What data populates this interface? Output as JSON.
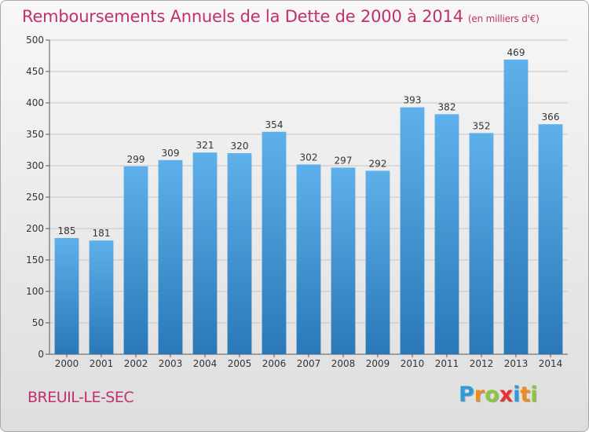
{
  "header": {
    "title": "Remboursements Annuels de la Dette de 2000 à 2014",
    "unit": "(en milliers d'€)"
  },
  "footer": {
    "place": "BREUIL-LE-SEC",
    "logo_letters": [
      "P",
      "r",
      "o",
      "x",
      "i",
      "t",
      "i"
    ],
    "logo_colors": [
      "#2e9bd6",
      "#f08a1c",
      "#8cc63f",
      "#e5322d",
      "#2e9bd6",
      "#f08a1c",
      "#8cc63f"
    ]
  },
  "colors": {
    "bar_top": "#5eb0ea",
    "bar_bottom": "#2a78b8",
    "text": "#333333",
    "title": "#c0306c"
  },
  "chart_data": {
    "type": "bar",
    "categories": [
      "2000",
      "2001",
      "2002",
      "2003",
      "2004",
      "2005",
      "2006",
      "2007",
      "2008",
      "2009",
      "2010",
      "2011",
      "2012",
      "2013",
      "2014"
    ],
    "values": [
      185,
      181,
      299,
      309,
      321,
      320,
      354,
      302,
      297,
      292,
      393,
      382,
      352,
      469,
      366
    ],
    "yticks": [
      0,
      50,
      100,
      150,
      200,
      250,
      300,
      350,
      400,
      450,
      500
    ],
    "ylim": [
      0,
      500
    ],
    "grid": true,
    "xlabel": "",
    "ylabel": ""
  }
}
